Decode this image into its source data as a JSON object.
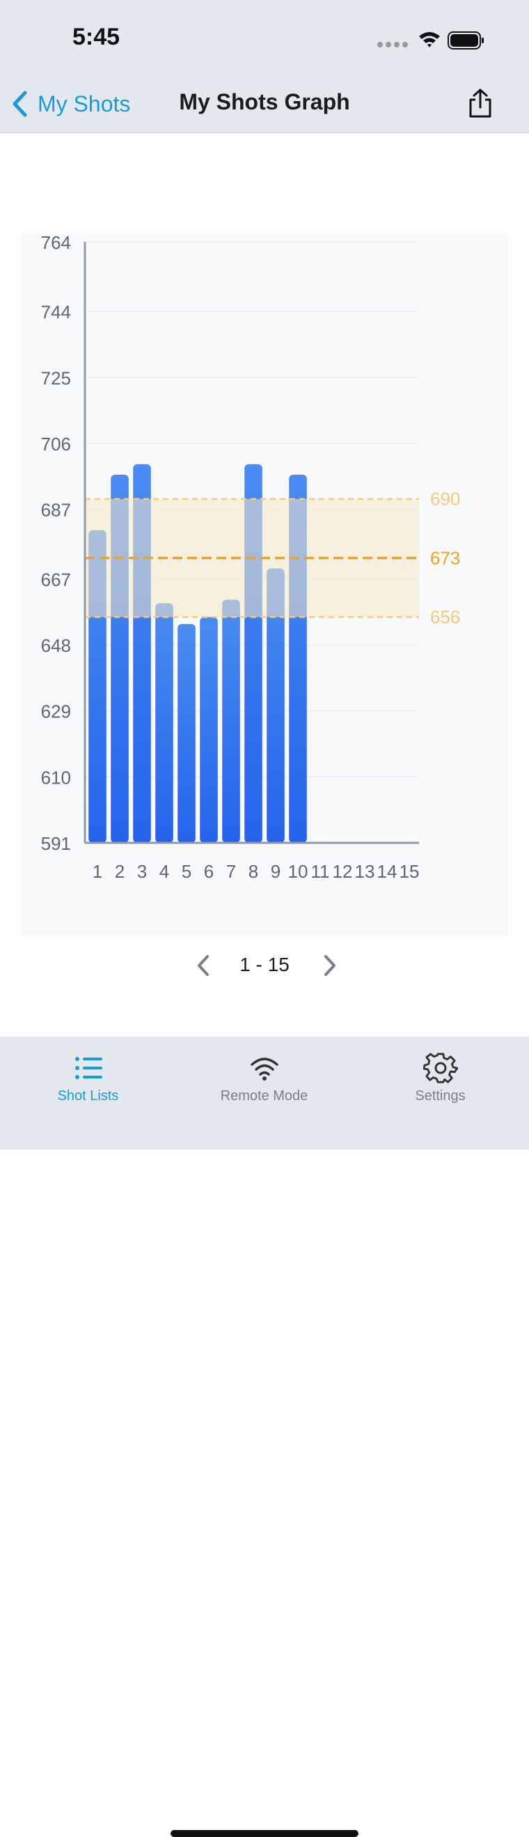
{
  "status_bar": {
    "time": "5:45"
  },
  "nav": {
    "back_label": "My Shots",
    "title": "My Shots Graph"
  },
  "colors": {
    "accent": "#1a9bd8",
    "bar_top": "#4a8cf0",
    "bar_bottom": "#2563eb",
    "band": "#f7e9c8",
    "mean_line": "#f5a020",
    "limit_line": "#f9c97a"
  },
  "chart_data": {
    "type": "bar",
    "categories": [
      "1",
      "2",
      "3",
      "4",
      "5",
      "6",
      "7",
      "8",
      "9",
      "10",
      "11",
      "12",
      "13",
      "14",
      "15"
    ],
    "values": [
      681,
      697,
      700,
      660,
      654,
      656,
      661,
      700,
      670,
      697,
      null,
      null,
      null,
      null,
      null
    ],
    "y_ticks": [
      "764",
      "744",
      "725",
      "706",
      "687",
      "667",
      "648",
      "629",
      "610",
      "591"
    ],
    "ylim": [
      591,
      764
    ],
    "reference_lines": [
      {
        "value": 690,
        "label": "690",
        "style": "dashed-light"
      },
      {
        "value": 673,
        "label": "673",
        "style": "dashed-bold"
      },
      {
        "value": 656,
        "label": "656",
        "style": "dashed-light"
      }
    ],
    "grid": true
  },
  "pager": {
    "label": "1 - 15"
  },
  "tabs": [
    {
      "label": "Shot Lists",
      "icon": "list-icon",
      "active": true
    },
    {
      "label": "Remote Mode",
      "icon": "wifi-icon",
      "active": false
    },
    {
      "label": "Settings",
      "icon": "gear-icon",
      "active": false
    }
  ]
}
